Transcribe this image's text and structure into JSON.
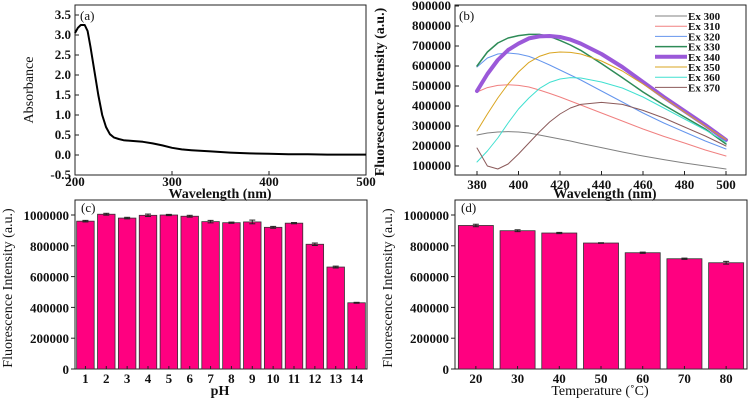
{
  "chart_data": [
    {
      "id": "a",
      "type": "line",
      "panel_label": "(a)",
      "title": "",
      "xlabel": "Wavelength (nm)",
      "ylabel": "Absorbance",
      "xlim": [
        200,
        500
      ],
      "ylim": [
        -0.5,
        3.5
      ],
      "xticks": [
        200,
        300,
        400,
        500
      ],
      "yticks": [
        -0.5,
        0.0,
        0.5,
        1.0,
        1.5,
        2.0,
        2.5,
        3.0,
        3.5
      ],
      "ytick_labels": [
        "-0.5",
        "0.0",
        "0.5",
        "1.0",
        "1.5",
        "2.0",
        "2.5",
        "3.0",
        "3.5"
      ],
      "series": [
        {
          "name": "Absorbance",
          "color": "#000000",
          "x": [
            200,
            203,
            206,
            210,
            213,
            216,
            220,
            224,
            228,
            232,
            236,
            240,
            245,
            250,
            260,
            270,
            280,
            290,
            300,
            310,
            320,
            340,
            360,
            380,
            400,
            420,
            440,
            460,
            480,
            500
          ],
          "y": [
            3.05,
            3.18,
            3.25,
            3.25,
            3.1,
            2.7,
            2.1,
            1.5,
            1.0,
            0.7,
            0.52,
            0.44,
            0.4,
            0.37,
            0.35,
            0.33,
            0.29,
            0.24,
            0.18,
            0.14,
            0.12,
            0.09,
            0.06,
            0.04,
            0.03,
            0.02,
            0.02,
            0.01,
            0.01,
            0.01
          ]
        }
      ]
    },
    {
      "id": "b",
      "type": "line",
      "panel_label": "(b)",
      "title": "",
      "xlabel": "Wavelength (nm)",
      "ylabel": "Fluorescence Intensity (a.u.)",
      "xlim": [
        370,
        510
      ],
      "ylim": [
        50000,
        900000
      ],
      "xticks": [
        380,
        400,
        420,
        440,
        460,
        480,
        500
      ],
      "yticks": [
        100000,
        200000,
        300000,
        400000,
        500000,
        600000,
        700000,
        800000,
        900000
      ],
      "legend_position": "top-right",
      "x": [
        380,
        385,
        390,
        395,
        400,
        405,
        410,
        415,
        420,
        425,
        430,
        440,
        450,
        460,
        470,
        480,
        490,
        500
      ],
      "series": [
        {
          "name": "Ex 300",
          "color": "#808080",
          "width": 1,
          "values": [
            255000,
            265000,
            270000,
            272000,
            270000,
            265000,
            255000,
            245000,
            235000,
            225000,
            213000,
            192000,
            170000,
            150000,
            132000,
            115000,
            100000,
            85000
          ]
        },
        {
          "name": "Ex 310",
          "color": "#F08080",
          "width": 1,
          "values": [
            470000,
            492000,
            503000,
            506000,
            503000,
            495000,
            480000,
            463000,
            445000,
            425000,
            405000,
            365000,
            325000,
            285000,
            248000,
            215000,
            180000,
            150000
          ]
        },
        {
          "name": "Ex 320",
          "color": "#6495ED",
          "width": 1,
          "values": [
            595000,
            640000,
            660000,
            665000,
            660000,
            648000,
            628000,
            605000,
            580000,
            555000,
            530000,
            475000,
            420000,
            365000,
            315000,
            270000,
            225000,
            185000
          ]
        },
        {
          "name": "Ex 330",
          "color": "#2E8B57",
          "width": 1.5,
          "values": [
            600000,
            670000,
            715000,
            740000,
            752000,
            758000,
            758000,
            748000,
            728000,
            705000,
            678000,
            612000,
            542000,
            470000,
            405000,
            345000,
            285000,
            210000
          ]
        },
        {
          "name": "Ex 340",
          "color": "#9B59D9",
          "width": 4,
          "values": [
            475000,
            560000,
            630000,
            680000,
            712000,
            738000,
            748000,
            750000,
            745000,
            732000,
            712000,
            660000,
            595000,
            520000,
            445000,
            375000,
            305000,
            230000
          ]
        },
        {
          "name": "Ex 350",
          "color": "#DAA520",
          "width": 1,
          "values": [
            275000,
            360000,
            440000,
            510000,
            570000,
            618000,
            648000,
            665000,
            670000,
            668000,
            660000,
            625000,
            575000,
            510000,
            440000,
            370000,
            300000,
            232000
          ]
        },
        {
          "name": "Ex 360",
          "color": "#40E0D0",
          "width": 1,
          "values": [
            120000,
            175000,
            240000,
            315000,
            385000,
            440000,
            487000,
            518000,
            535000,
            542000,
            540000,
            520000,
            490000,
            445000,
            390000,
            335000,
            280000,
            220000
          ]
        },
        {
          "name": "Ex 370",
          "color": "#8B5A5A",
          "width": 1,
          "values": [
            190000,
            100000,
            85000,
            110000,
            160000,
            215000,
            270000,
            320000,
            360000,
            390000,
            408000,
            418000,
            408000,
            378000,
            340000,
            295000,
            250000,
            200000
          ]
        }
      ]
    },
    {
      "id": "c",
      "type": "bar",
      "panel_label": "(c)",
      "title": "",
      "xlabel": "pH",
      "ylabel": "Fluorescence Intensity (a.u.)",
      "ylim": [
        0,
        1100000
      ],
      "yticks": [
        0,
        200000,
        400000,
        600000,
        800000,
        1000000
      ],
      "bar_color": "#FF0080",
      "categories": [
        "1",
        "2",
        "3",
        "4",
        "5",
        "6",
        "7",
        "8",
        "9",
        "10",
        "11",
        "12",
        "13",
        "14"
      ],
      "values": [
        960000,
        1005000,
        980000,
        998000,
        1000000,
        992000,
        957000,
        950000,
        955000,
        920000,
        947000,
        810000,
        662000,
        430000
      ],
      "errors": [
        5000,
        6000,
        5000,
        8000,
        4000,
        6000,
        8000,
        4000,
        12000,
        6000,
        4000,
        8000,
        6000,
        3000
      ]
    },
    {
      "id": "d",
      "type": "bar",
      "panel_label": "(d)",
      "title": "",
      "xlabel": "Temperature (˚C)",
      "ylabel": "Fluorescence Intensity (a.u.)",
      "ylim": [
        0,
        1100000
      ],
      "yticks": [
        0,
        200000,
        400000,
        600000,
        800000,
        1000000
      ],
      "bar_color": "#FF0080",
      "categories": [
        "20",
        "30",
        "40",
        "50",
        "60",
        "70",
        "80"
      ],
      "values": [
        932000,
        898000,
        883000,
        818000,
        755000,
        716000,
        690000
      ],
      "errors": [
        8000,
        6000,
        4000,
        2000,
        4000,
        4000,
        9000
      ]
    }
  ]
}
